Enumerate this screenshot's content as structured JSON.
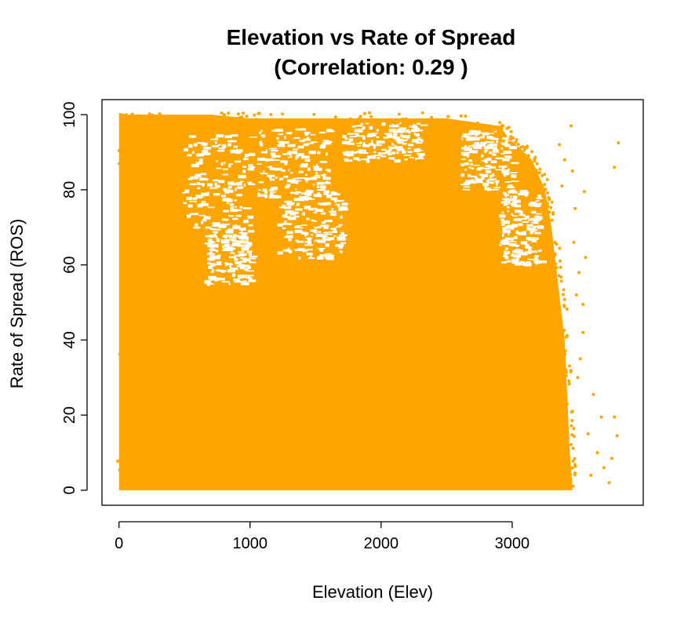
{
  "chart_data": {
    "type": "scatter",
    "title_line1": "Elevation vs Rate of Spread",
    "title_line2": "(Correlation: 0.29 )",
    "xlabel": "Elevation (Elev)",
    "ylabel": "Rate of Spread (ROS)",
    "xlim": [
      -130,
      4000
    ],
    "ylim": [
      -4,
      104
    ],
    "xticks": [
      0,
      1000,
      2000,
      3000
    ],
    "yticks": [
      0,
      20,
      40,
      60,
      80,
      100
    ],
    "xtick_labels": [
      "0",
      "1000",
      "2000",
      "3000"
    ],
    "ytick_labels": [
      "0",
      "20",
      "40",
      "60",
      "80",
      "100"
    ],
    "color": "#FFA500",
    "correlation": 0.29,
    "grid": false,
    "dense_region": [
      [
        0,
        0
      ],
      [
        0,
        100
      ],
      [
        200,
        100
      ],
      [
        700,
        100
      ],
      [
        1000,
        99
      ],
      [
        1500,
        99
      ],
      [
        2000,
        99
      ],
      [
        2500,
        99
      ],
      [
        2900,
        97
      ],
      [
        3000,
        93
      ],
      [
        3150,
        88
      ],
      [
        3250,
        80
      ],
      [
        3300,
        70
      ],
      [
        3350,
        55
      ],
      [
        3400,
        40
      ],
      [
        3420,
        25
      ],
      [
        3440,
        10
      ],
      [
        3460,
        0
      ]
    ],
    "outliers": [
      [
        3810,
        92.5
      ],
      [
        3780,
        86
      ],
      [
        3550,
        79.5
      ],
      [
        3560,
        62
      ],
      [
        3540,
        49.5
      ],
      [
        3540,
        42
      ],
      [
        3620,
        25.5
      ],
      [
        3680,
        19.5
      ],
      [
        3780,
        19.5
      ],
      [
        3800,
        14.5
      ],
      [
        3760,
        8.5
      ],
      [
        3700,
        6
      ],
      [
        3740,
        2
      ],
      [
        3600,
        4
      ],
      [
        3650,
        10
      ],
      [
        3580,
        15
      ],
      [
        3500,
        30
      ],
      [
        3520,
        35
      ],
      [
        3490,
        52
      ],
      [
        3510,
        58
      ],
      [
        3470,
        66
      ],
      [
        3480,
        75
      ],
      [
        3460,
        85
      ],
      [
        3450,
        97
      ],
      [
        3400,
        88
      ],
      [
        3380,
        81
      ],
      [
        3360,
        92
      ]
    ],
    "sparse_gaps": [
      [
        480,
        1000,
        70,
        95
      ],
      [
        1050,
        1600,
        78,
        97
      ],
      [
        1200,
        1700,
        62,
        80
      ],
      [
        650,
        1000,
        55,
        70
      ],
      [
        2600,
        3000,
        80,
        96
      ],
      [
        2900,
        3200,
        60,
        80
      ],
      [
        1700,
        2300,
        88,
        98
      ]
    ]
  }
}
